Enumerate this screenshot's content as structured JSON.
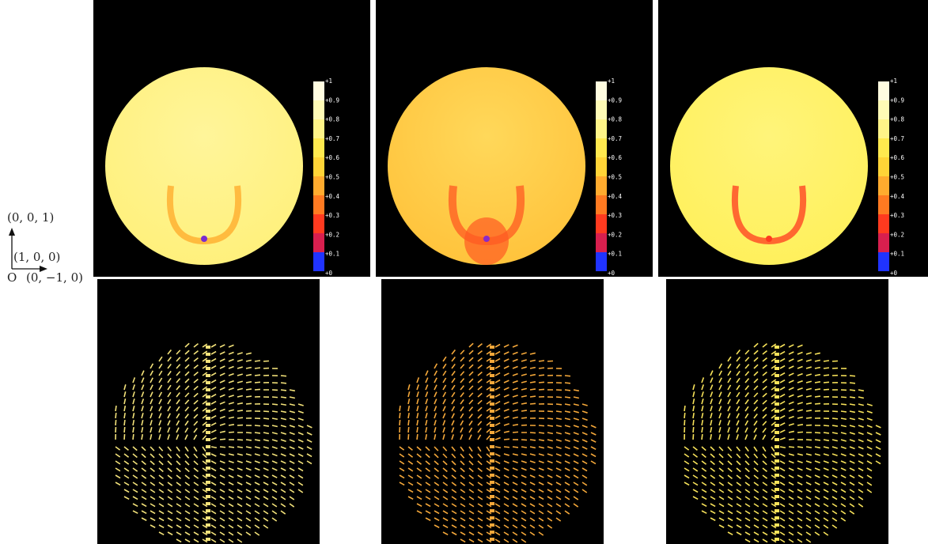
{
  "axes_legend": {
    "z_label": "(0, 0, 1)",
    "x_label": "(1, 0, 0)",
    "origin_label": "O",
    "y_label": "(0, −1, 0)"
  },
  "colorbar": {
    "ticks": [
      "+1",
      "+0.9",
      "+0.8",
      "+0.7",
      "+0.6",
      "+0.5",
      "+0.4",
      "+0.3",
      "+0.2",
      "+0.1",
      "+0"
    ],
    "colors": [
      "#fffce0",
      "#fffbb6",
      "#fff488",
      "#ffe94e",
      "#ffd437",
      "#ffab2e",
      "#ff7a21",
      "#ff3a1f",
      "#d81f4e",
      "#8a2ac9",
      "#2033ff"
    ]
  },
  "panels_top": [
    {
      "name": "heatmap-1",
      "fill": "#fff07a",
      "edge": "#fff59a",
      "ring": "#ffa828",
      "core": "#7a2bd0"
    },
    {
      "name": "heatmap-2",
      "fill": "#ffc23a",
      "edge": "#ffd85a",
      "ring": "#ff5a22",
      "core": "#8a2ac9"
    },
    {
      "name": "heatmap-3",
      "fill": "#fff05a",
      "edge": "#fff47a",
      "ring": "#ff3a1f",
      "core": "#ff3a1f"
    }
  ],
  "panels_bottom": [
    {
      "name": "vector-field-1",
      "color": "#f3e27a"
    },
    {
      "name": "vector-field-2",
      "color": "#f5a83a"
    },
    {
      "name": "vector-field-3",
      "color": "#f7e25a"
    }
  ]
}
